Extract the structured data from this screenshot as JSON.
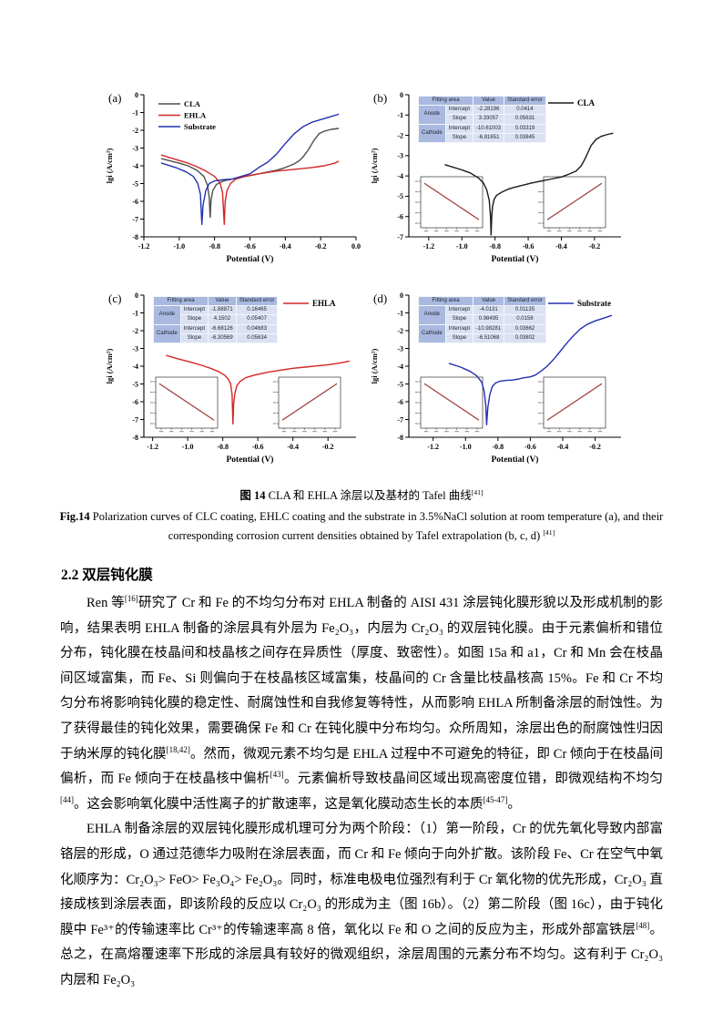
{
  "section": {
    "heading": "2.2 双层钝化膜"
  },
  "figure": {
    "caption_cn_segments": [
      {
        "text": "图 14",
        "bold": true
      },
      {
        "text": " CLA 和 EHLA 涂层以及基材的 Tafel 曲线"
      },
      {
        "text": "[41]",
        "sup": true
      }
    ],
    "caption_en_segments": [
      {
        "text": "Fig.14",
        "bold": true
      },
      {
        "text": " Polarization curves of CLC coating, EHLC coating and the substrate in 3.5%NaCl solution at room temperature (a), and their corresponding corrosion current densities obtained by Tafel extrapolation (b, c, d) "
      },
      {
        "text": "[41]",
        "sup": true
      }
    ]
  },
  "paragraphs": [
    {
      "segments": [
        {
          "text": "Ren 等"
        },
        {
          "text": "[16]",
          "sup": true
        },
        {
          "text": "研究了 Cr 和 Fe 的不均匀分布对 EHLA 制备的 AISI 431 涂层钝化膜形貌以及形成机制的影响，结果表明 EHLA 制备的涂层具有外层为 Fe₂O₃，内层为 Cr₂O₃ 的双层钝化膜。由于元素偏析和错位分布，钝化膜在枝晶间和枝晶核之间存在异质性（厚度、致密性）。如图 15a 和 a1，Cr 和 Mn 会在枝晶间区域富集，而 Fe、Si 则偏向于在枝晶核区域富集，枝晶间的 Cr 含量比枝晶核高 15%。Fe 和 Cr 不均匀分布将影响钝化膜的稳定性、耐腐蚀性和自我修复等特性，从而影响 EHLA 所制备涂层的耐蚀性。为了获得最佳的钝化效果，需要确保 Fe 和 Cr 在钝化膜中分布均匀。众所周知，涂层出色的耐腐蚀性归因于纳米厚的钝化膜"
        },
        {
          "text": "[18,42]",
          "sup": true
        },
        {
          "text": "。然而，微观元素不均匀是 EHLA 过程中不可避免的特征，即 Cr 倾向于在枝晶间偏析，而 Fe 倾向于在枝晶核中偏析"
        },
        {
          "text": "[43]",
          "sup": true
        },
        {
          "text": "。元素偏析导致枝晶间区域出现高密度位错，即微观结构不均匀"
        },
        {
          "text": "[44]",
          "sup": true
        },
        {
          "text": "。这会影响氧化膜中活性离子的扩散速率，这是氧化膜动态生长的本质"
        },
        {
          "text": "[45-47]",
          "sup": true
        },
        {
          "text": "。"
        }
      ]
    },
    {
      "segments": [
        {
          "text": "EHLA 制备涂层的双层钝化膜形成机理可分为两个阶段：（1）第一阶段，Cr 的优先氧化导致内部富铬层的形成，O 通过范德华力吸附在涂层表面，而 Cr 和 Fe 倾向于向外扩散。该阶段 Fe、Cr 在空气中氧化顺序为：Cr₂O₃> FeO> Fe₃O₄> Fe₂O₃。同时，标准电极电位强烈有利于 Cr 氧化物的优先形成，Cr₂O₃ 直接成核到涂层表面，即该阶段的反应以 Cr₂O₃ 的形成为主（图 16b）。（2）第二阶段（图 16c），由于钝化膜中 Fe³⁺的传输速率比 Cr³⁺的传输速率高 8 倍，氧化以 Fe 和 O 之间的反应为主，形成外部富铁层"
        },
        {
          "text": "[48]",
          "sup": true
        },
        {
          "text": "。总之，在高熔覆速率下形成的涂层具有较好的微观组织，涂层周围的元素分布不均匀。这有利于 Cr₂O₃ 内层和 Fe₂O₃"
        }
      ]
    }
  ],
  "chart_data": [
    {
      "id": "a",
      "type": "line",
      "panel_label": "(a)",
      "xlabel": "Potential (V)",
      "ylabel": "lgi (A/cm²)",
      "xlim": [
        -1.2,
        0.0
      ],
      "ylim": [
        -8,
        0
      ],
      "xticks": [
        -1.2,
        -1.0,
        -0.8,
        -0.6,
        -0.4,
        -0.2,
        0.0
      ],
      "yticks": [
        0,
        -1,
        -2,
        -3,
        -4,
        -5,
        -6,
        -7,
        -8
      ],
      "legend_pos": "top-left",
      "grid": false,
      "insets": false,
      "fit_table": null,
      "series": [
        {
          "name": "CLA",
          "color": "#4d4d4d",
          "points": [
            [
              -1.1,
              -3.6
            ],
            [
              -1.0,
              -3.85
            ],
            [
              -0.95,
              -4.0
            ],
            [
              -0.9,
              -4.25
            ],
            [
              -0.86,
              -4.6
            ],
            [
              -0.84,
              -5.1
            ],
            [
              -0.83,
              -5.8
            ],
            [
              -0.825,
              -6.9
            ],
            [
              -0.82,
              -5.9
            ],
            [
              -0.81,
              -5.4
            ],
            [
              -0.79,
              -5.05
            ],
            [
              -0.75,
              -4.85
            ],
            [
              -0.7,
              -4.75
            ],
            [
              -0.65,
              -4.65
            ],
            [
              -0.6,
              -4.55
            ],
            [
              -0.55,
              -4.45
            ],
            [
              -0.5,
              -4.35
            ],
            [
              -0.45,
              -4.25
            ],
            [
              -0.4,
              -4.1
            ],
            [
              -0.35,
              -3.9
            ],
            [
              -0.32,
              -3.7
            ],
            [
              -0.3,
              -3.5
            ],
            [
              -0.27,
              -3.1
            ],
            [
              -0.24,
              -2.6
            ],
            [
              -0.21,
              -2.2
            ],
            [
              -0.18,
              -2.05
            ],
            [
              -0.14,
              -1.95
            ],
            [
              -0.1,
              -1.9
            ]
          ]
        },
        {
          "name": "EHLA",
          "color": "#d42626",
          "points": [
            [
              -1.1,
              -3.4
            ],
            [
              -1.0,
              -3.7
            ],
            [
              -0.95,
              -3.85
            ],
            [
              -0.9,
              -4.05
            ],
            [
              -0.85,
              -4.3
            ],
            [
              -0.8,
              -4.6
            ],
            [
              -0.77,
              -4.95
            ],
            [
              -0.755,
              -5.5
            ],
            [
              -0.745,
              -7.3
            ],
            [
              -0.74,
              -6.0
            ],
            [
              -0.73,
              -5.4
            ],
            [
              -0.71,
              -5.0
            ],
            [
              -0.68,
              -4.75
            ],
            [
              -0.63,
              -4.6
            ],
            [
              -0.55,
              -4.45
            ],
            [
              -0.45,
              -4.3
            ],
            [
              -0.35,
              -4.2
            ],
            [
              -0.25,
              -4.1
            ],
            [
              -0.18,
              -4.0
            ],
            [
              -0.12,
              -3.85
            ],
            [
              -0.1,
              -3.75
            ]
          ]
        },
        {
          "name": "Substrate",
          "color": "#2431b0",
          "points": [
            [
              -1.1,
              -3.85
            ],
            [
              -1.02,
              -4.1
            ],
            [
              -0.96,
              -4.35
            ],
            [
              -0.92,
              -4.6
            ],
            [
              -0.895,
              -5.0
            ],
            [
              -0.88,
              -5.6
            ],
            [
              -0.872,
              -7.3
            ],
            [
              -0.865,
              -6.2
            ],
            [
              -0.85,
              -5.4
            ],
            [
              -0.83,
              -5.0
            ],
            [
              -0.8,
              -4.85
            ],
            [
              -0.75,
              -4.78
            ],
            [
              -0.7,
              -4.75
            ],
            [
              -0.65,
              -4.6
            ],
            [
              -0.6,
              -4.45
            ],
            [
              -0.55,
              -4.1
            ],
            [
              -0.5,
              -3.8
            ],
            [
              -0.45,
              -3.35
            ],
            [
              -0.4,
              -2.75
            ],
            [
              -0.35,
              -2.2
            ],
            [
              -0.3,
              -1.8
            ],
            [
              -0.25,
              -1.55
            ],
            [
              -0.2,
              -1.4
            ],
            [
              -0.15,
              -1.25
            ],
            [
              -0.1,
              -1.1
            ]
          ]
        }
      ]
    },
    {
      "id": "b",
      "type": "line",
      "panel_label": "(b)",
      "xlabel": "Potential (V)",
      "ylabel": "lgi (A/cm²)",
      "xlim": [
        -1.32,
        -0.04
      ],
      "ylim": [
        -7,
        0
      ],
      "xticks": [
        -1.2,
        -1.0,
        -0.8,
        -0.6,
        -0.4,
        -0.2
      ],
      "yticks": [
        0,
        -1,
        -2,
        -3,
        -4,
        -5,
        -6,
        -7
      ],
      "legend_pos": "top-right",
      "grid": false,
      "insets": true,
      "fit_table": {
        "headers": [
          "Fitting area",
          "Value",
          "Standard error"
        ],
        "rows": [
          {
            "group": "Anode",
            "param": "Intercept",
            "value": "-2.28196",
            "error": "0.0414"
          },
          {
            "group": "Anode",
            "param": "Slope",
            "value": "3.33057",
            "error": "0.05631"
          },
          {
            "group": "Cathode",
            "param": "Intercept",
            "value": "-10.61003",
            "error": "0.03319"
          },
          {
            "group": "Cathode",
            "param": "Slope",
            "value": "-6.81651",
            "error": "0.03845"
          }
        ]
      },
      "series": [
        {
          "name": "CLA",
          "color": "#1a1a1a",
          "points": [
            [
              -1.1,
              -3.45
            ],
            [
              -1.0,
              -3.7
            ],
            [
              -0.95,
              -3.85
            ],
            [
              -0.9,
              -4.1
            ],
            [
              -0.87,
              -4.35
            ],
            [
              -0.85,
              -4.7
            ],
            [
              -0.835,
              -5.2
            ],
            [
              -0.827,
              -6.0
            ],
            [
              -0.824,
              -6.9
            ],
            [
              -0.82,
              -6.0
            ],
            [
              -0.815,
              -5.5
            ],
            [
              -0.805,
              -5.15
            ],
            [
              -0.79,
              -4.95
            ],
            [
              -0.76,
              -4.8
            ],
            [
              -0.72,
              -4.65
            ],
            [
              -0.68,
              -4.55
            ],
            [
              -0.63,
              -4.45
            ],
            [
              -0.58,
              -4.35
            ],
            [
              -0.52,
              -4.25
            ],
            [
              -0.46,
              -4.15
            ],
            [
              -0.4,
              -4.05
            ],
            [
              -0.35,
              -3.9
            ],
            [
              -0.31,
              -3.75
            ],
            [
              -0.28,
              -3.5
            ],
            [
              -0.26,
              -3.2
            ],
            [
              -0.24,
              -2.85
            ],
            [
              -0.22,
              -2.5
            ],
            [
              -0.19,
              -2.2
            ],
            [
              -0.16,
              -2.05
            ],
            [
              -0.12,
              -1.95
            ],
            [
              -0.09,
              -1.9
            ]
          ]
        }
      ]
    },
    {
      "id": "c",
      "type": "line",
      "panel_label": "(c)",
      "xlabel": "Potential (V)",
      "ylabel": "lgi (A/cm²)",
      "xlim": [
        -1.25,
        -0.04
      ],
      "ylim": [
        -8,
        0
      ],
      "xticks": [
        -1.2,
        -1.0,
        -0.8,
        -0.6,
        -0.4,
        -0.2
      ],
      "yticks": [
        0,
        -1,
        -2,
        -3,
        -4,
        -5,
        -6,
        -7,
        -8
      ],
      "legend_pos": "top-right",
      "grid": false,
      "insets": true,
      "fit_table": {
        "headers": [
          "Fitting area",
          "Value",
          "Standard error"
        ],
        "rows": [
          {
            "group": "Anode",
            "param": "Intercept",
            "value": "-1.88871",
            "error": "0.16465"
          },
          {
            "group": "Anode",
            "param": "Slope",
            "value": "4.1502",
            "error": "0.05407"
          },
          {
            "group": "Cathode",
            "param": "Intercept",
            "value": "-6.68126",
            "error": "0.04683"
          },
          {
            "group": "Cathode",
            "param": "Slope",
            "value": "-6.30569",
            "error": "0.05634"
          }
        ]
      },
      "series": [
        {
          "name": "EHLA",
          "color": "#d42626",
          "points": [
            [
              -1.12,
              -3.4
            ],
            [
              -1.05,
              -3.6
            ],
            [
              -0.98,
              -3.78
            ],
            [
              -0.92,
              -3.95
            ],
            [
              -0.87,
              -4.12
            ],
            [
              -0.82,
              -4.32
            ],
            [
              -0.79,
              -4.5
            ],
            [
              -0.77,
              -4.7
            ],
            [
              -0.755,
              -5.0
            ],
            [
              -0.747,
              -5.6
            ],
            [
              -0.742,
              -7.25
            ],
            [
              -0.738,
              -6.1
            ],
            [
              -0.73,
              -5.5
            ],
            [
              -0.72,
              -5.1
            ],
            [
              -0.7,
              -4.85
            ],
            [
              -0.67,
              -4.65
            ],
            [
              -0.62,
              -4.5
            ],
            [
              -0.55,
              -4.35
            ],
            [
              -0.47,
              -4.22
            ],
            [
              -0.4,
              -4.12
            ],
            [
              -0.33,
              -4.05
            ],
            [
              -0.26,
              -3.98
            ],
            [
              -0.2,
              -3.92
            ],
            [
              -0.15,
              -3.85
            ],
            [
              -0.11,
              -3.78
            ],
            [
              -0.08,
              -3.72
            ]
          ]
        }
      ]
    },
    {
      "id": "d",
      "type": "line",
      "panel_label": "(d)",
      "xlabel": "Potential (V)",
      "ylabel": "lgi (A/cm²)",
      "xlim": [
        -1.35,
        -0.04
      ],
      "ylim": [
        -8,
        0
      ],
      "xticks": [
        -1.2,
        -1.0,
        -0.8,
        -0.6,
        -0.4,
        -0.2
      ],
      "yticks": [
        0,
        -1,
        -2,
        -3,
        -4,
        -5,
        -6,
        -7,
        -8
      ],
      "legend_pos": "top-right",
      "grid": false,
      "insets": true,
      "fit_table": {
        "headers": [
          "Fitting area",
          "Value",
          "Standard error"
        ],
        "rows": [
          {
            "group": "Anode",
            "param": "Intercept",
            "value": "-4.0131",
            "error": "0.01135"
          },
          {
            "group": "Anode",
            "param": "Slope",
            "value": "0.98495",
            "error": "0.0158"
          },
          {
            "group": "Cathode",
            "param": "Intercept",
            "value": "-10.98281",
            "error": "0.03662"
          },
          {
            "group": "Cathode",
            "param": "Slope",
            "value": "-6.51068",
            "error": "0.03802"
          }
        ]
      },
      "series": [
        {
          "name": "Substrate",
          "color": "#2431b0",
          "points": [
            [
              -1.1,
              -3.85
            ],
            [
              -1.03,
              -4.05
            ],
            [
              -0.97,
              -4.3
            ],
            [
              -0.93,
              -4.55
            ],
            [
              -0.9,
              -4.9
            ],
            [
              -0.885,
              -5.4
            ],
            [
              -0.875,
              -6.2
            ],
            [
              -0.87,
              -7.3
            ],
            [
              -0.862,
              -6.3
            ],
            [
              -0.85,
              -5.6
            ],
            [
              -0.835,
              -5.15
            ],
            [
              -0.815,
              -4.95
            ],
            [
              -0.79,
              -4.85
            ],
            [
              -0.75,
              -4.8
            ],
            [
              -0.71,
              -4.78
            ],
            [
              -0.67,
              -4.72
            ],
            [
              -0.64,
              -4.65
            ],
            [
              -0.6,
              -4.6
            ],
            [
              -0.57,
              -4.5
            ],
            [
              -0.53,
              -4.25
            ],
            [
              -0.49,
              -3.95
            ],
            [
              -0.45,
              -3.55
            ],
            [
              -0.41,
              -3.1
            ],
            [
              -0.37,
              -2.65
            ],
            [
              -0.33,
              -2.25
            ],
            [
              -0.29,
              -1.9
            ],
            [
              -0.25,
              -1.65
            ],
            [
              -0.2,
              -1.45
            ],
            [
              -0.15,
              -1.3
            ],
            [
              -0.1,
              -1.15
            ]
          ]
        }
      ]
    }
  ],
  "colors": {
    "table_header_bg": "#a9b9e0",
    "table_cell_bg": "#dbe1f2",
    "cla": "#4d4d4d",
    "ehla": "#d42626",
    "substrate": "#2431b0",
    "inset_fit_line": "#c03030"
  }
}
